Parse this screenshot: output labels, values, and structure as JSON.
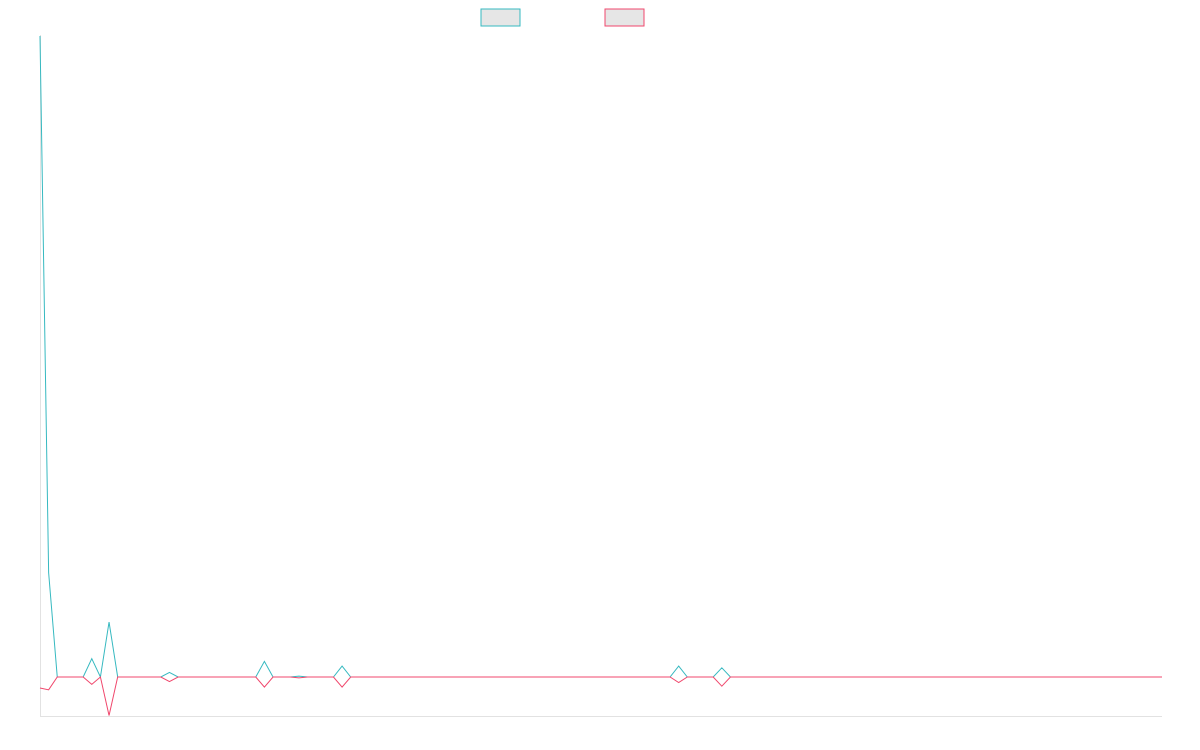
{
  "chart_data": {
    "type": "line",
    "title": "",
    "xlabel": "",
    "ylabel": "",
    "legend_position": "top-center",
    "grid": false,
    "x_count": 131,
    "ylim": [
      -4,
      70
    ],
    "series": [
      {
        "color": "#36b9c0",
        "points": [
          [
            0,
            70
          ],
          [
            1,
            11.4
          ],
          [
            2,
            0
          ],
          [
            3,
            0
          ],
          [
            4,
            0
          ],
          [
            5,
            0
          ],
          [
            6,
            2
          ],
          [
            7,
            0
          ],
          [
            8,
            6
          ],
          [
            9,
            0
          ],
          [
            10,
            0
          ],
          [
            11,
            0
          ],
          [
            12,
            0
          ],
          [
            13,
            0
          ],
          [
            14,
            0
          ],
          [
            15,
            0.5
          ],
          [
            16,
            0
          ],
          [
            17,
            0
          ],
          [
            18,
            0
          ],
          [
            19,
            0
          ],
          [
            20,
            0
          ],
          [
            21,
            0
          ],
          [
            22,
            0
          ],
          [
            23,
            0
          ],
          [
            24,
            0
          ],
          [
            25,
            0
          ],
          [
            26,
            1.7
          ],
          [
            27,
            0
          ],
          [
            28,
            0
          ],
          [
            29,
            0
          ],
          [
            30,
            0.1
          ],
          [
            31,
            0
          ],
          [
            32,
            0
          ],
          [
            33,
            0
          ],
          [
            34,
            0
          ],
          [
            35,
            1.2
          ],
          [
            36,
            0
          ],
          [
            37,
            0
          ],
          [
            38,
            0
          ],
          [
            39,
            0
          ],
          [
            40,
            0
          ],
          [
            41,
            0
          ],
          [
            42,
            0
          ],
          [
            43,
            0
          ],
          [
            44,
            0
          ],
          [
            45,
            0
          ],
          [
            46,
            0
          ],
          [
            47,
            0
          ],
          [
            48,
            0
          ],
          [
            49,
            0
          ],
          [
            50,
            0
          ],
          [
            51,
            0
          ],
          [
            52,
            0
          ],
          [
            53,
            0
          ],
          [
            54,
            0
          ],
          [
            55,
            0
          ],
          [
            56,
            0
          ],
          [
            57,
            0
          ],
          [
            58,
            0
          ],
          [
            59,
            0
          ],
          [
            60,
            0
          ],
          [
            61,
            0
          ],
          [
            62,
            0
          ],
          [
            63,
            0
          ],
          [
            64,
            0
          ],
          [
            65,
            0
          ],
          [
            66,
            0
          ],
          [
            67,
            0
          ],
          [
            68,
            0
          ],
          [
            69,
            0
          ],
          [
            70,
            0
          ],
          [
            71,
            0
          ],
          [
            72,
            0
          ],
          [
            73,
            0
          ],
          [
            74,
            1.2
          ],
          [
            75,
            0
          ],
          [
            76,
            0
          ],
          [
            77,
            0
          ],
          [
            78,
            0
          ],
          [
            79,
            1
          ],
          [
            80,
            0
          ],
          [
            81,
            0
          ],
          [
            82,
            0
          ],
          [
            83,
            0
          ],
          [
            84,
            0
          ],
          [
            85,
            0
          ],
          [
            86,
            0
          ],
          [
            87,
            0
          ],
          [
            88,
            0
          ],
          [
            89,
            0
          ],
          [
            90,
            0
          ],
          [
            91,
            0
          ],
          [
            92,
            0
          ],
          [
            93,
            0
          ],
          [
            94,
            0
          ],
          [
            95,
            0
          ],
          [
            96,
            0
          ],
          [
            97,
            0
          ],
          [
            98,
            0
          ],
          [
            99,
            0
          ],
          [
            100,
            0
          ],
          [
            101,
            0
          ],
          [
            102,
            0
          ],
          [
            103,
            0
          ],
          [
            104,
            0
          ],
          [
            105,
            0
          ],
          [
            106,
            0
          ],
          [
            107,
            0
          ],
          [
            108,
            0
          ],
          [
            109,
            0
          ],
          [
            110,
            0
          ],
          [
            111,
            0
          ],
          [
            112,
            0
          ],
          [
            113,
            0
          ],
          [
            114,
            0
          ],
          [
            115,
            0
          ],
          [
            116,
            0
          ],
          [
            117,
            0
          ],
          [
            118,
            0
          ],
          [
            119,
            0
          ],
          [
            120,
            0
          ],
          [
            121,
            0
          ],
          [
            122,
            0
          ],
          [
            123,
            0
          ],
          [
            124,
            0
          ],
          [
            125,
            0
          ],
          [
            126,
            0
          ],
          [
            127,
            0
          ],
          [
            128,
            0
          ],
          [
            129,
            0
          ],
          [
            130,
            0
          ]
        ]
      },
      {
        "color": "#f0476c",
        "points": [
          [
            0,
            -1.2
          ],
          [
            1,
            -1.4
          ],
          [
            2,
            0
          ],
          [
            3,
            0
          ],
          [
            4,
            0
          ],
          [
            5,
            0
          ],
          [
            6,
            -0.8
          ],
          [
            7,
            0
          ],
          [
            8,
            -4.2
          ],
          [
            9,
            0
          ],
          [
            10,
            0
          ],
          [
            11,
            0
          ],
          [
            12,
            0
          ],
          [
            13,
            0
          ],
          [
            14,
            0
          ],
          [
            15,
            -0.5
          ],
          [
            16,
            0
          ],
          [
            17,
            0
          ],
          [
            18,
            0
          ],
          [
            19,
            0
          ],
          [
            20,
            0
          ],
          [
            21,
            0
          ],
          [
            22,
            0
          ],
          [
            23,
            0
          ],
          [
            24,
            0
          ],
          [
            25,
            0
          ],
          [
            26,
            -1.1
          ],
          [
            27,
            0
          ],
          [
            28,
            0
          ],
          [
            29,
            0
          ],
          [
            30,
            -0.1
          ],
          [
            31,
            0
          ],
          [
            32,
            0
          ],
          [
            33,
            0
          ],
          [
            34,
            0
          ],
          [
            35,
            -1.1
          ],
          [
            36,
            0
          ],
          [
            37,
            0
          ],
          [
            38,
            0
          ],
          [
            39,
            0
          ],
          [
            40,
            0
          ],
          [
            41,
            0
          ],
          [
            42,
            0
          ],
          [
            43,
            0
          ],
          [
            44,
            0
          ],
          [
            45,
            0
          ],
          [
            46,
            0
          ],
          [
            47,
            0
          ],
          [
            48,
            0
          ],
          [
            49,
            0
          ],
          [
            50,
            0
          ],
          [
            51,
            0
          ],
          [
            52,
            0
          ],
          [
            53,
            0
          ],
          [
            54,
            0
          ],
          [
            55,
            0
          ],
          [
            56,
            0
          ],
          [
            57,
            0
          ],
          [
            58,
            0
          ],
          [
            59,
            0
          ],
          [
            60,
            0
          ],
          [
            61,
            0
          ],
          [
            62,
            0
          ],
          [
            63,
            0
          ],
          [
            64,
            0
          ],
          [
            65,
            0
          ],
          [
            66,
            0
          ],
          [
            67,
            0
          ],
          [
            68,
            0
          ],
          [
            69,
            0
          ],
          [
            70,
            0
          ],
          [
            71,
            0
          ],
          [
            72,
            0
          ],
          [
            73,
            0
          ],
          [
            74,
            -0.6
          ],
          [
            75,
            0
          ],
          [
            76,
            0
          ],
          [
            77,
            0
          ],
          [
            78,
            0
          ],
          [
            79,
            -1
          ],
          [
            80,
            0
          ],
          [
            81,
            0
          ],
          [
            82,
            0
          ],
          [
            83,
            0
          ],
          [
            84,
            0
          ],
          [
            85,
            0
          ],
          [
            86,
            0
          ],
          [
            87,
            0
          ],
          [
            88,
            0
          ],
          [
            89,
            0
          ],
          [
            90,
            0
          ],
          [
            91,
            0
          ],
          [
            92,
            0
          ],
          [
            93,
            0
          ],
          [
            94,
            0
          ],
          [
            95,
            0
          ],
          [
            96,
            0
          ],
          [
            97,
            0
          ],
          [
            98,
            0
          ],
          [
            99,
            0
          ],
          [
            100,
            0
          ],
          [
            101,
            0
          ],
          [
            102,
            0
          ],
          [
            103,
            0
          ],
          [
            104,
            0
          ],
          [
            105,
            0
          ],
          [
            106,
            0
          ],
          [
            107,
            0
          ],
          [
            108,
            0
          ],
          [
            109,
            0
          ],
          [
            110,
            0
          ],
          [
            111,
            0
          ],
          [
            112,
            0
          ],
          [
            113,
            0
          ],
          [
            114,
            0
          ],
          [
            115,
            0
          ],
          [
            116,
            0
          ],
          [
            117,
            0
          ],
          [
            118,
            0
          ],
          [
            119,
            0
          ],
          [
            120,
            0
          ],
          [
            121,
            0
          ],
          [
            122,
            0
          ],
          [
            123,
            0
          ],
          [
            124,
            0
          ],
          [
            125,
            0
          ],
          [
            126,
            0
          ],
          [
            127,
            0
          ],
          [
            128,
            0
          ],
          [
            129,
            0
          ],
          [
            130,
            0
          ]
        ]
      }
    ]
  }
}
